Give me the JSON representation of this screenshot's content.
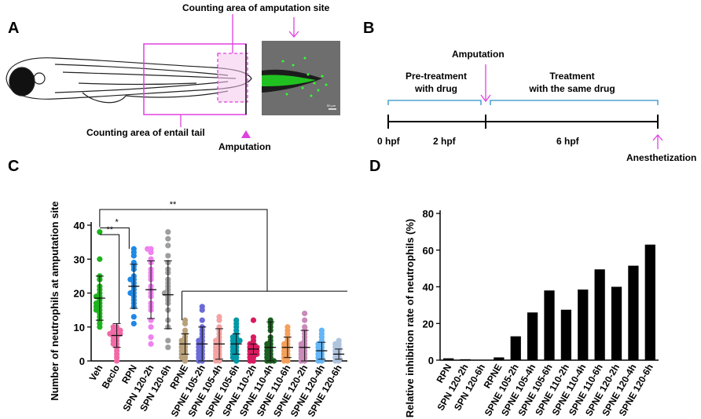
{
  "panels": {
    "A": {
      "letter": "A",
      "label_top": "Counting area of amputation site",
      "label_bottom": "Counting area of entail tail",
      "label_amputation": "Amputation",
      "scale_text": "50 µm"
    },
    "B": {
      "letter": "B",
      "amputation": "Amputation",
      "pre_line1": "Pre-treatment",
      "pre_line2": "with drug",
      "treat_line1": "Treatment",
      "treat_line2": "with the same drug",
      "t0": "0 hpf",
      "t2": "2 hpf",
      "t6": "6 hpf",
      "anesthetization": "Anesthetization"
    },
    "C": {
      "letter": "C"
    },
    "D": {
      "letter": "D"
    }
  },
  "chart_data": [
    {
      "type": "scatter",
      "panel": "C",
      "ylabel": "Number of neutrophils at amputation site",
      "ylim": [
        0,
        40
      ],
      "yticks": [
        0,
        10,
        20,
        30,
        40
      ],
      "significance": [
        "**",
        "*",
        "**"
      ],
      "groups": [
        {
          "name": "Veh",
          "color": "#1db31d",
          "mean": 18.5,
          "sd": 6.5,
          "values": [
            38,
            30,
            25,
            24,
            22,
            21,
            20,
            19,
            19,
            18,
            17,
            17,
            16,
            16,
            15,
            15,
            14,
            13,
            12,
            11,
            10
          ]
        },
        {
          "name": "Beclo",
          "color": "#f06aa6",
          "mean": 7.5,
          "sd": 3.5,
          "values": [
            10,
            10,
            9,
            9,
            9,
            8,
            8,
            8,
            8,
            7,
            7,
            6,
            6,
            5,
            5,
            4,
            3,
            2,
            1,
            0
          ]
        },
        {
          "name": "RPN",
          "color": "#1e88e5",
          "mean": 22,
          "sd": 6.5,
          "values": [
            33,
            32,
            31,
            29,
            28,
            27,
            25,
            24,
            24,
            23,
            22,
            21,
            20,
            20,
            19,
            18,
            17,
            16,
            13,
            11
          ]
        },
        {
          "name": "SPN 120-2h",
          "color": "#ee82ee",
          "mean": 21,
          "sd": 8.5,
          "values": [
            33,
            33,
            32,
            30,
            29,
            27,
            26,
            25,
            24,
            22,
            21,
            20,
            19,
            17,
            16,
            15,
            12,
            10,
            7,
            5
          ]
        },
        {
          "name": "SPN 120-6h",
          "color": "#9e9e9e",
          "mean": 19.5,
          "sd": 10,
          "values": [
            38,
            36,
            34,
            31,
            29,
            27,
            26,
            24,
            23,
            22,
            21,
            20,
            20,
            19,
            18,
            17,
            15,
            12,
            10,
            6,
            4
          ]
        },
        {
          "name": "RPNE",
          "color": "#b8a07a",
          "mean": 5,
          "sd": 3,
          "values": [
            12,
            11,
            9,
            8,
            7,
            6,
            6,
            5,
            5,
            4,
            4,
            3,
            3,
            2,
            2,
            1,
            1,
            0
          ]
        },
        {
          "name": "SPNE 105-2h",
          "color": "#6a6ad8",
          "mean": 5,
          "sd": 5,
          "values": [
            16,
            15,
            12,
            10,
            9,
            8,
            7,
            6,
            6,
            5,
            5,
            4,
            4,
            3,
            3,
            2,
            2,
            1,
            1,
            0,
            0
          ]
        },
        {
          "name": "SPNE 105-4h",
          "color": "#f4a3a3",
          "mean": 5,
          "sd": 4.5,
          "values": [
            13,
            12,
            10,
            9,
            8,
            7,
            6,
            6,
            5,
            5,
            4,
            4,
            3,
            3,
            2,
            2,
            1,
            1,
            0,
            0
          ]
        },
        {
          "name": "SPNE 105-6h",
          "color": "#0097a7",
          "mean": 5,
          "sd": 3,
          "values": [
            12,
            11,
            10,
            9,
            8,
            7,
            7,
            6,
            6,
            6,
            5,
            5,
            4,
            4,
            3,
            3,
            2,
            2,
            1,
            1,
            0
          ]
        },
        {
          "name": "SPNE 110-2h",
          "color": "#d81b60",
          "mean": 3.5,
          "sd": 1.5,
          "values": [
            12,
            7,
            6,
            5,
            5,
            4,
            4,
            4,
            3,
            3,
            3,
            2,
            2,
            2,
            1,
            1,
            0,
            0
          ]
        },
        {
          "name": "SPNE 110-4h",
          "color": "#1b5e20",
          "mean": 4,
          "sd": 7.5,
          "values": [
            12,
            11,
            10,
            9,
            7,
            6,
            5,
            5,
            4,
            4,
            3,
            3,
            2,
            2,
            1,
            1,
            0,
            0,
            0
          ]
        },
        {
          "name": "SPNE 110-6h",
          "color": "#f5a05a",
          "mean": 4,
          "sd": 3,
          "values": [
            10,
            9,
            8,
            7,
            6,
            5,
            5,
            4,
            4,
            3,
            3,
            2,
            2,
            1,
            1,
            0,
            0
          ]
        },
        {
          "name": "SPNE 120-2h",
          "color": "#c98bb9",
          "mean": 4,
          "sd": 5,
          "values": [
            14,
            12,
            10,
            9,
            8,
            7,
            6,
            5,
            5,
            4,
            4,
            3,
            3,
            2,
            2,
            1,
            1,
            0,
            0
          ]
        },
        {
          "name": "SPNE 120-4h",
          "color": "#64b5f6",
          "mean": 3,
          "sd": 2.5,
          "values": [
            9,
            8,
            7,
            6,
            5,
            5,
            4,
            4,
            3,
            3,
            2,
            2,
            1,
            1,
            0,
            0
          ]
        },
        {
          "name": "SPNE 120-6h",
          "color": "#b0c4de",
          "mean": 2,
          "sd": 1.5,
          "values": [
            6,
            5,
            5,
            4,
            4,
            3,
            3,
            2,
            2,
            1,
            1,
            0,
            0
          ]
        }
      ]
    },
    {
      "type": "bar",
      "panel": "D",
      "ylabel": "Relative inhibition rate of neutrophils (%)",
      "ylim": [
        0,
        80
      ],
      "yticks": [
        0,
        20,
        40,
        60,
        80
      ],
      "categories": [
        "RPN",
        "SPN 120-2h",
        "SPN 120-6h",
        "RPNE",
        "SPNE 105-2h",
        "SPNE 105-4h",
        "SPNE 105-6h",
        "SPNE 110-2h",
        "SPNE 110-4h",
        "SPNE 110-6h",
        "SPNE 120-2h",
        "SPNE 120-4h",
        "SPNE 120-6h"
      ],
      "values": [
        1,
        0.5,
        0,
        1.5,
        13,
        26,
        38,
        27.5,
        38.5,
        49.5,
        40,
        51.5,
        63
      ]
    }
  ],
  "colors": {
    "magenta": "#e040e0",
    "blue": "#2b8fc8",
    "green_fluor": "#22dd22"
  }
}
